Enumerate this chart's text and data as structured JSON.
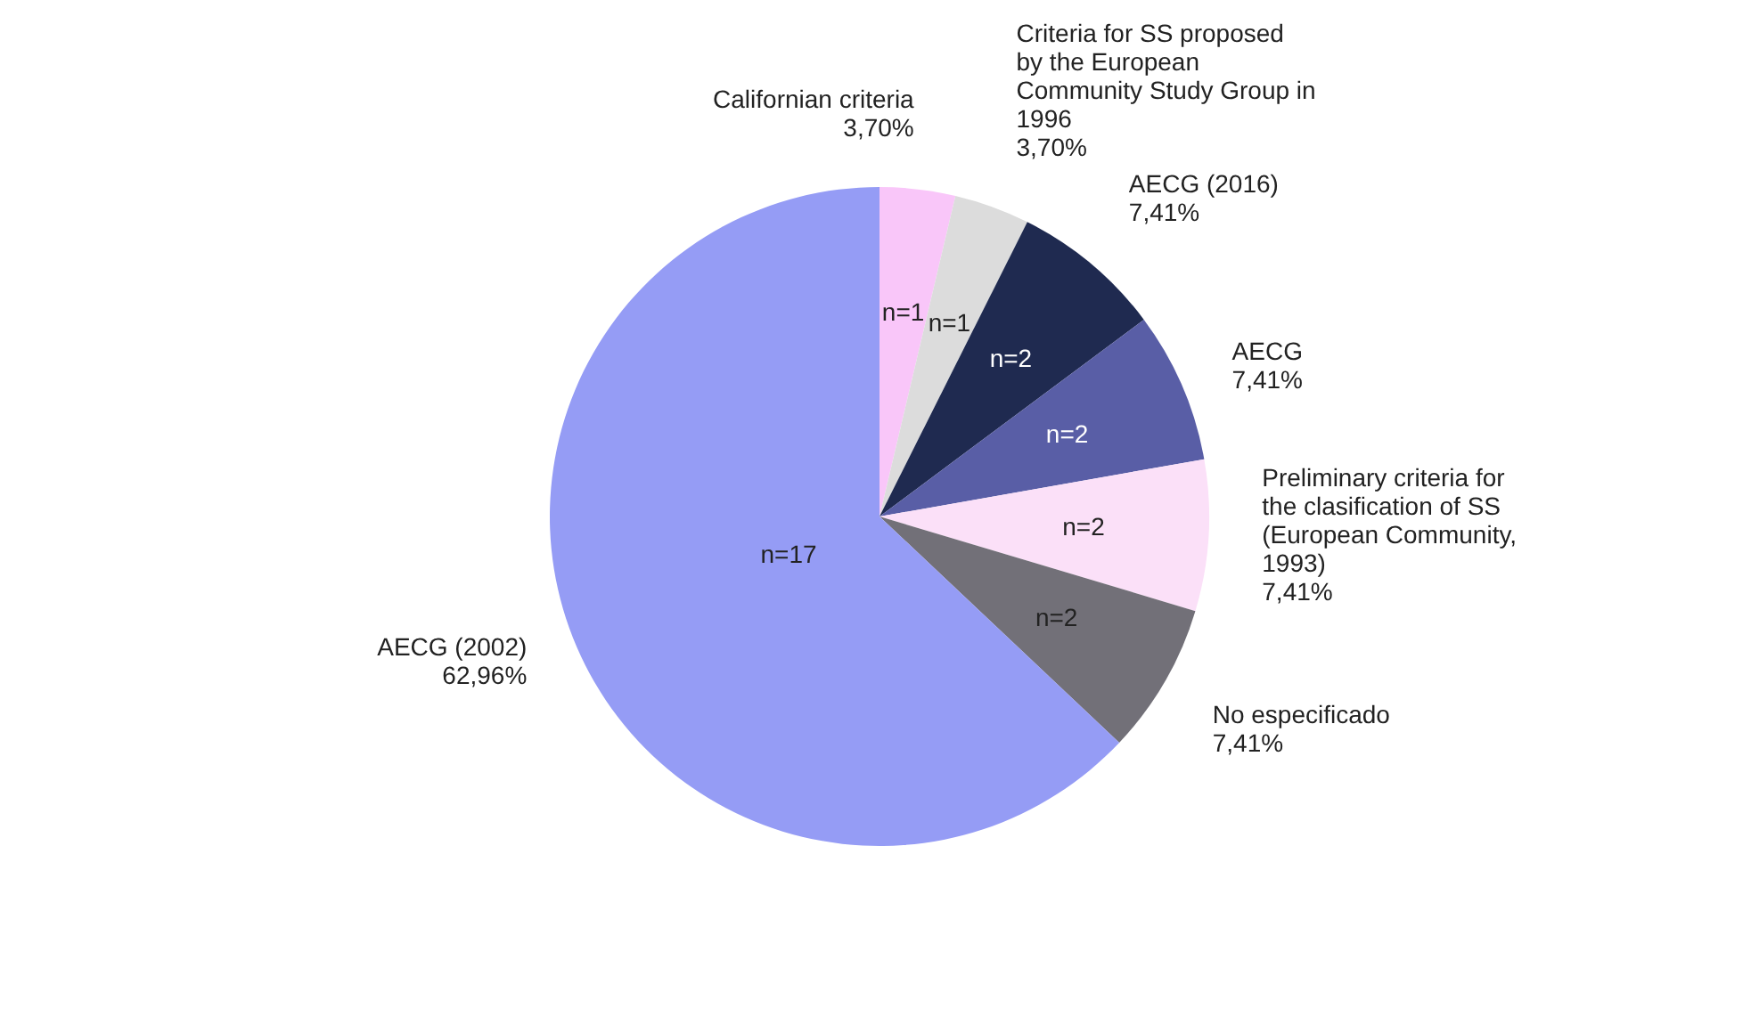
{
  "chart_data": {
    "type": "pie",
    "categories": [
      "Californian criteria",
      "Criteria for SS proposed by the European Community Study Group in 1996",
      "AECG (2016)",
      "AECG",
      "Preliminary criteria for the clasification of SS (European Community, 1993)",
      "No especificado",
      "AECG (2002)"
    ],
    "values": [
      3.7,
      3.7,
      7.41,
      7.41,
      7.41,
      7.41,
      62.96
    ],
    "colors": [
      "#f9c6f9",
      "#dcdcdc",
      "#1f2a50",
      "#595ea6",
      "#fbe0f8",
      "#727078",
      "#959cf5"
    ],
    "value_labels": [
      "3,70%",
      "3,70%",
      "7,41%",
      "7,41%",
      "7,41%",
      "7,41%",
      "62,96%"
    ],
    "annotations": [
      "n=1",
      "n=1",
      "n=2",
      "n=2",
      "n=2",
      "n=2",
      "n=17"
    ]
  }
}
